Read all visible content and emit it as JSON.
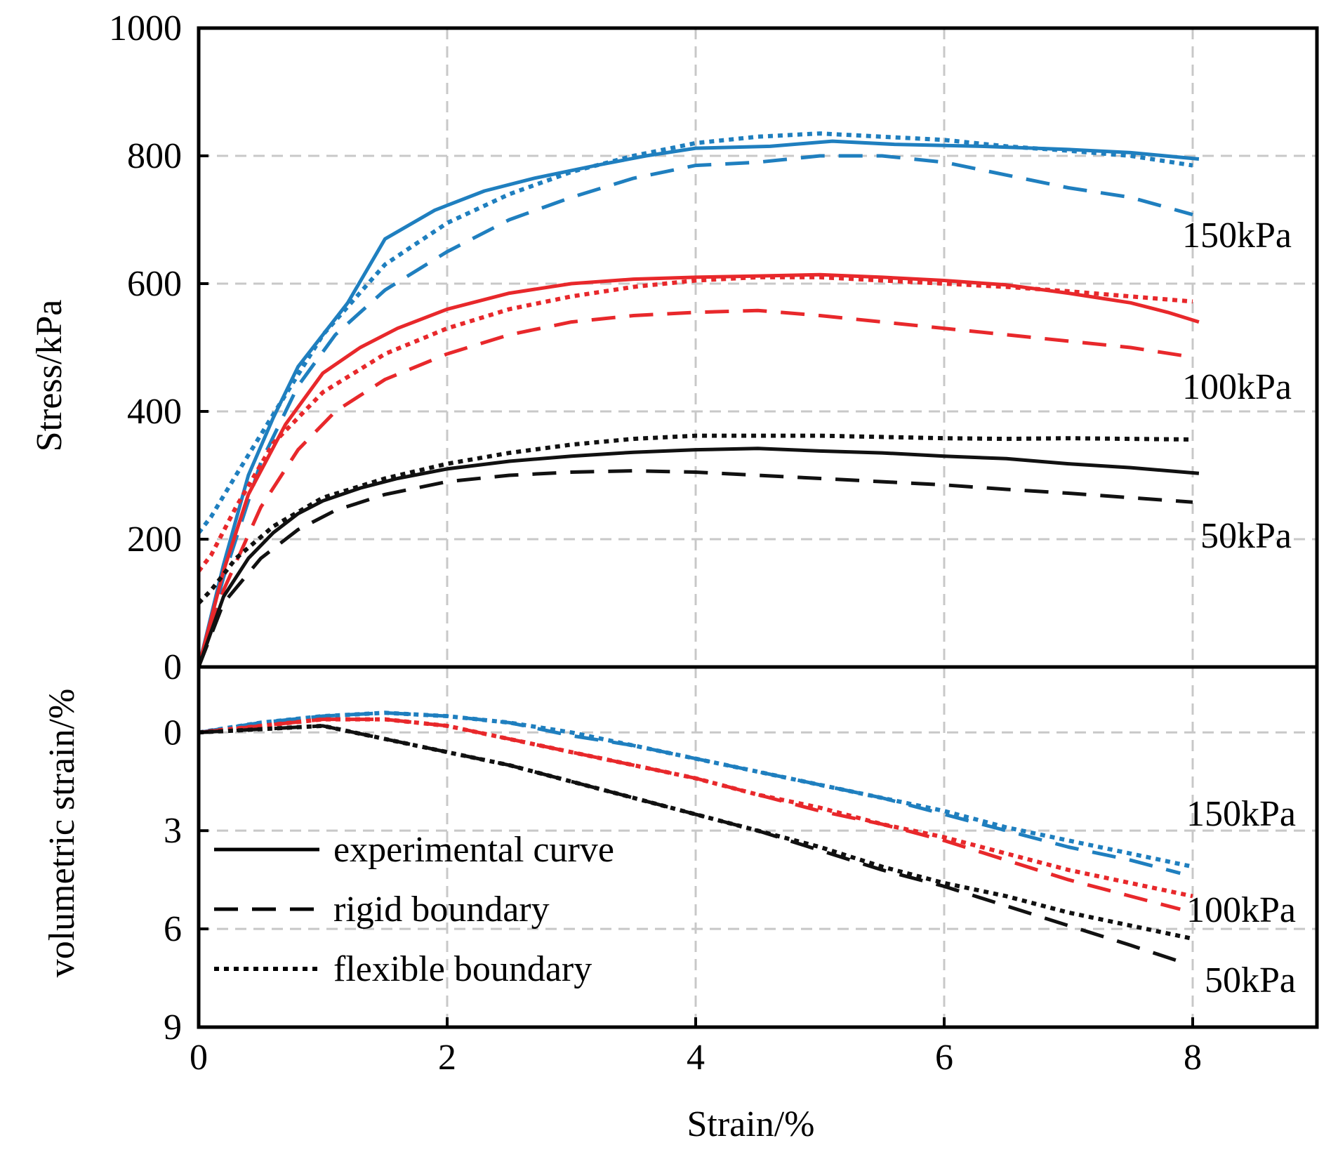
{
  "chart_data": [
    {
      "type": "line",
      "panel": "top",
      "ylabel": "Stress/kPa",
      "xlim": [
        0,
        9
      ],
      "ylim": [
        0,
        1000
      ],
      "yticks": [
        0,
        200,
        400,
        600,
        800,
        1000
      ],
      "grid": true,
      "annotations": [
        "150kPa",
        "100kPa",
        "50kPa"
      ],
      "series": [
        {
          "name": "150kPa experimental curve",
          "color": "#1f7fbf",
          "style": "solid",
          "x": [
            0,
            0.2,
            0.4,
            0.6,
            0.8,
            1.0,
            1.2,
            1.5,
            1.9,
            2.3,
            2.7,
            3.2,
            3.6,
            4.0,
            4.6,
            5.1,
            5.6,
            6.3,
            7.0,
            7.5,
            8.05
          ],
          "y": [
            0,
            160,
            300,
            390,
            470,
            520,
            570,
            670,
            715,
            745,
            765,
            785,
            800,
            812,
            815,
            823,
            818,
            815,
            810,
            805,
            795
          ]
        },
        {
          "name": "150kPa rigid boundary",
          "color": "#1f7fbf",
          "style": "dashed",
          "x": [
            0,
            0.2,
            0.5,
            0.8,
            1.1,
            1.5,
            2.0,
            2.5,
            3.0,
            3.5,
            4.0,
            4.5,
            5.0,
            5.5,
            6.0,
            6.5,
            7.0,
            7.5,
            8.0
          ],
          "y": [
            0,
            140,
            320,
            440,
            520,
            590,
            650,
            700,
            735,
            765,
            785,
            790,
            800,
            800,
            790,
            770,
            750,
            735,
            708
          ]
        },
        {
          "name": "150kPa flexible boundary",
          "color": "#1f7fbf",
          "style": "dotted",
          "x": [
            0,
            0.1,
            0.3,
            0.6,
            1.0,
            1.5,
            2.0,
            2.5,
            3.0,
            3.5,
            4.0,
            4.5,
            5.0,
            5.5,
            6.0,
            6.5,
            7.0,
            7.5,
            8.0
          ],
          "y": [
            210,
            235,
            300,
            395,
            520,
            630,
            695,
            740,
            775,
            800,
            820,
            830,
            835,
            830,
            825,
            815,
            808,
            800,
            785
          ]
        },
        {
          "name": "100kPa experimental curve",
          "color": "#e8282b",
          "style": "solid",
          "x": [
            0,
            0.2,
            0.4,
            0.7,
            1.0,
            1.3,
            1.6,
            2.0,
            2.5,
            3.0,
            3.5,
            4.0,
            4.5,
            5.0,
            5.5,
            6.0,
            6.5,
            7.0,
            7.5,
            7.8,
            8.05
          ],
          "y": [
            0,
            150,
            270,
            380,
            460,
            500,
            530,
            560,
            585,
            600,
            607,
            610,
            612,
            614,
            610,
            605,
            598,
            585,
            570,
            555,
            540
          ]
        },
        {
          "name": "100kPa rigid boundary",
          "color": "#e8282b",
          "style": "dashed",
          "x": [
            0,
            0.2,
            0.5,
            0.8,
            1.1,
            1.5,
            2.0,
            2.5,
            3.0,
            3.5,
            4.0,
            4.5,
            5.0,
            5.5,
            6.0,
            6.5,
            7.0,
            7.5,
            8.0
          ],
          "y": [
            0,
            120,
            250,
            340,
            400,
            450,
            490,
            520,
            540,
            550,
            555,
            558,
            550,
            540,
            530,
            520,
            510,
            500,
            485
          ]
        },
        {
          "name": "100kPa flexible boundary",
          "color": "#e8282b",
          "style": "dotted",
          "x": [
            0,
            0.1,
            0.3,
            0.6,
            1.0,
            1.5,
            2.0,
            2.5,
            3.0,
            3.5,
            4.0,
            4.5,
            5.0,
            5.5,
            6.0,
            6.5,
            7.0,
            7.5,
            8.0
          ],
          "y": [
            150,
            175,
            250,
            350,
            430,
            490,
            530,
            560,
            580,
            595,
            605,
            610,
            610,
            605,
            600,
            595,
            588,
            580,
            572
          ]
        },
        {
          "name": "50kPa experimental curve",
          "color": "#111111",
          "style": "solid",
          "x": [
            0,
            0.2,
            0.4,
            0.6,
            0.8,
            1.0,
            1.3,
            1.6,
            2.0,
            2.5,
            3.0,
            3.5,
            4.0,
            4.5,
            5.0,
            5.5,
            6.0,
            6.5,
            7.0,
            7.5,
            8.05
          ],
          "y": [
            0,
            110,
            170,
            210,
            240,
            260,
            280,
            295,
            310,
            322,
            330,
            336,
            340,
            342,
            338,
            335,
            330,
            326,
            318,
            312,
            303
          ]
        },
        {
          "name": "50kPa rigid boundary",
          "color": "#111111",
          "style": "dashed",
          "x": [
            0,
            0.2,
            0.5,
            0.8,
            1.1,
            1.5,
            2.0,
            2.5,
            3.0,
            3.5,
            4.0,
            4.5,
            5.0,
            5.5,
            6.0,
            6.5,
            7.0,
            7.5,
            8.0
          ],
          "y": [
            0,
            100,
            170,
            215,
            245,
            270,
            290,
            300,
            305,
            307,
            305,
            300,
            295,
            290,
            285,
            278,
            272,
            265,
            258
          ]
        },
        {
          "name": "50kPa flexible boundary",
          "color": "#111111",
          "style": "dotted",
          "x": [
            0,
            0.1,
            0.3,
            0.6,
            1.0,
            1.5,
            2.0,
            2.5,
            3.0,
            3.5,
            4.0,
            4.5,
            5.0,
            5.5,
            6.0,
            6.5,
            7.0,
            7.5,
            8.0
          ],
          "y": [
            100,
            120,
            170,
            220,
            265,
            295,
            318,
            335,
            348,
            357,
            362,
            362,
            362,
            360,
            358,
            357,
            358,
            357,
            356
          ]
        }
      ]
    },
    {
      "type": "line",
      "panel": "bottom",
      "xlabel": "Strain/%",
      "ylabel": "volumetric strain/%",
      "xlim": [
        0,
        9
      ],
      "ylim": [
        9,
        -2
      ],
      "yticks": [
        0,
        3,
        6,
        9
      ],
      "xticks": [
        0,
        2,
        4,
        6,
        8
      ],
      "grid": true,
      "annotations": [
        "150kPa",
        "100kPa",
        "50kPa"
      ],
      "legend": {
        "position": "bottom-left",
        "entries": [
          {
            "label": "experimental curve",
            "style": "solid"
          },
          {
            "label": "rigid boundary",
            "style": "dashed"
          },
          {
            "label": "flexible boundary",
            "style": "dotted"
          }
        ]
      },
      "series": [
        {
          "name": "150kPa rigid boundary",
          "color": "#1f7fbf",
          "style": "dashed",
          "x": [
            0,
            0.5,
            1.0,
            1.5,
            2.0,
            2.5,
            3.0,
            3.5,
            4.0,
            4.5,
            5.0,
            5.5,
            6.0,
            6.5,
            7.0,
            7.5,
            7.9
          ],
          "y": [
            0,
            -0.3,
            -0.5,
            -0.6,
            -0.5,
            -0.3,
            0.1,
            0.4,
            0.8,
            1.2,
            1.6,
            2.0,
            2.5,
            3.0,
            3.5,
            3.9,
            4.3
          ]
        },
        {
          "name": "150kPa flexible boundary",
          "color": "#1f7fbf",
          "style": "dotted",
          "x": [
            0,
            0.5,
            1.0,
            1.5,
            2.0,
            2.5,
            3.0,
            3.5,
            4.0,
            4.5,
            5.0,
            5.5,
            6.0,
            6.5,
            7.0,
            7.5,
            8.0
          ],
          "y": [
            0,
            -0.3,
            -0.5,
            -0.6,
            -0.5,
            -0.3,
            0.0,
            0.4,
            0.8,
            1.2,
            1.6,
            2.0,
            2.4,
            2.9,
            3.3,
            3.7,
            4.1
          ]
        },
        {
          "name": "100kPa rigid boundary",
          "color": "#e8282b",
          "style": "dashed",
          "x": [
            0,
            0.5,
            1.0,
            1.5,
            2.0,
            2.5,
            3.0,
            3.5,
            4.0,
            4.5,
            5.0,
            5.5,
            6.0,
            6.5,
            7.0,
            7.5,
            7.9
          ],
          "y": [
            0,
            -0.2,
            -0.4,
            -0.4,
            -0.2,
            0.2,
            0.6,
            1.0,
            1.4,
            1.9,
            2.4,
            2.8,
            3.3,
            3.9,
            4.5,
            5.0,
            5.4
          ]
        },
        {
          "name": "100kPa flexible boundary",
          "color": "#e8282b",
          "style": "dotted",
          "x": [
            0,
            0.5,
            1.0,
            1.5,
            2.0,
            2.5,
            3.0,
            3.5,
            4.0,
            4.5,
            5.0,
            5.5,
            6.0,
            6.5,
            7.0,
            7.5,
            8.0
          ],
          "y": [
            0,
            -0.2,
            -0.4,
            -0.4,
            -0.2,
            0.2,
            0.6,
            1.0,
            1.4,
            1.9,
            2.3,
            2.8,
            3.2,
            3.7,
            4.2,
            4.6,
            5.0
          ]
        },
        {
          "name": "50kPa rigid boundary",
          "color": "#111111",
          "style": "dashed",
          "x": [
            0,
            0.5,
            1.0,
            1.5,
            2.0,
            2.5,
            3.0,
            3.5,
            4.0,
            4.5,
            5.0,
            5.5,
            6.0,
            6.5,
            7.0,
            7.5,
            7.9
          ],
          "y": [
            0,
            -0.1,
            -0.2,
            0.2,
            0.6,
            1.0,
            1.5,
            2.0,
            2.5,
            3.0,
            3.6,
            4.2,
            4.7,
            5.3,
            5.9,
            6.5,
            7.0
          ]
        },
        {
          "name": "50kPa flexible boundary",
          "color": "#111111",
          "style": "dotted",
          "x": [
            0,
            0.5,
            1.0,
            1.5,
            2.0,
            2.5,
            3.0,
            3.5,
            4.0,
            4.5,
            5.0,
            5.5,
            6.0,
            6.5,
            7.0,
            7.5,
            8.0
          ],
          "y": [
            0,
            -0.1,
            -0.2,
            0.2,
            0.6,
            1.0,
            1.5,
            2.0,
            2.5,
            3.0,
            3.5,
            4.1,
            4.6,
            5.0,
            5.5,
            5.9,
            6.3
          ]
        }
      ]
    }
  ]
}
